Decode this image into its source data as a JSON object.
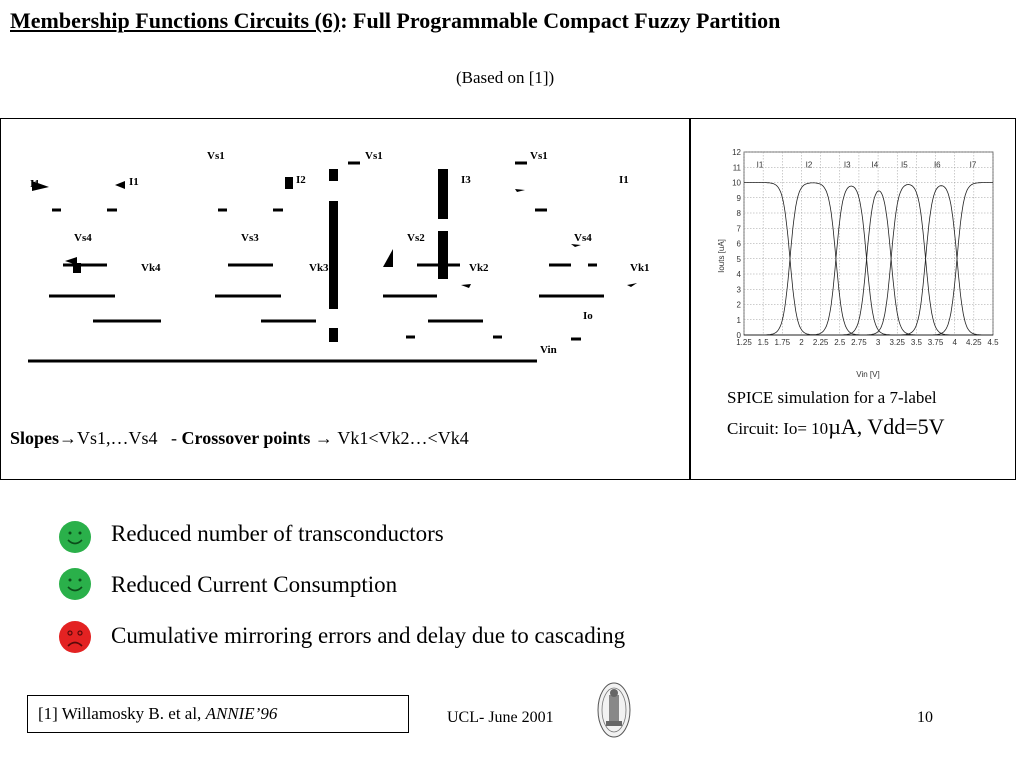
{
  "title": {
    "underlined": "Membership Functions Circuits (6)",
    "rest": ": Full Programmable Compact Fuzzy Partition"
  },
  "subtitle": "(Based on [1])",
  "circuit": {
    "labels": {
      "vs1_a": "Vs1",
      "vs1_b": "Vs1",
      "vs1_c": "Vs1",
      "i1_left": "I1",
      "i1_right": "I1",
      "i2": "I2",
      "i3": "I3",
      "vs4_a": "Vs4",
      "vs3": "Vs3",
      "vs2": "Vs2",
      "vs4_b": "Vs4",
      "vk1": "Vk1",
      "vk2": "Vk2",
      "vk3": "Vk3",
      "vk4": "Vk4",
      "io": "Io",
      "vin": "Vin"
    }
  },
  "slopes_line": {
    "slopes_label": "Slopes",
    "slopes_value": "Vs1,…Vs4",
    "separator": "-",
    "crossover_label": "Crossover points",
    "crossover_value": "Vk1<Vk2…<Vk4"
  },
  "simulation": {
    "caption_line1": "SPICE simulation for a 7-label",
    "caption_line2_prefix": "Circuit: Io= 10",
    "caption_line2_suffix": "µA, Vdd=5V"
  },
  "chart_data": {
    "type": "line",
    "xlabel": "Vin [V]",
    "ylabel": "Iouts [uA]",
    "xlim": [
      1.25,
      4.5
    ],
    "ylim": [
      0,
      12
    ],
    "x_ticks": [
      "1.25",
      "1.5",
      "1.75",
      "2",
      "2.25",
      "2.5",
      "2.75",
      "3",
      "3.25",
      "3.5",
      "3.75",
      "4",
      "4.25",
      "4.5"
    ],
    "y_ticks": [
      "0",
      "1",
      "2",
      "3",
      "4",
      "5",
      "6",
      "7",
      "8",
      "9",
      "10",
      "11",
      "12"
    ],
    "grid": true,
    "series": [
      {
        "name": "I1",
        "rise": null,
        "fall": 1.85,
        "peak": 10
      },
      {
        "name": "I2",
        "rise": 1.85,
        "fall": 2.45,
        "peak": 10
      },
      {
        "name": "I3",
        "rise": 2.45,
        "fall": 2.85,
        "peak": 10
      },
      {
        "name": "I4",
        "rise": 2.85,
        "fall": 3.17,
        "peak": 10
      },
      {
        "name": "I5",
        "rise": 3.17,
        "fall": 3.62,
        "peak": 10
      },
      {
        "name": "I6",
        "rise": 3.62,
        "fall": 4.03,
        "peak": 10
      },
      {
        "name": "I7",
        "rise": 4.03,
        "fall": null,
        "peak": 10
      }
    ]
  },
  "bullets": [
    {
      "icon": "happy-face-icon",
      "color": "#2ab04a",
      "text": "Reduced number of transconductors"
    },
    {
      "icon": "happy-face-icon",
      "color": "#2ab04a",
      "text": "Reduced Current Consumption"
    },
    {
      "icon": "sad-face-icon",
      "color": "#e32222",
      "text": "Cumulative mirroring errors and delay due to cascading"
    }
  ],
  "footer": {
    "ref_prefix": "[1] Willamosky B. et al, ",
    "ref_italic": "ANNIE’96",
    "date": "UCL- June 2001",
    "page": "10"
  }
}
